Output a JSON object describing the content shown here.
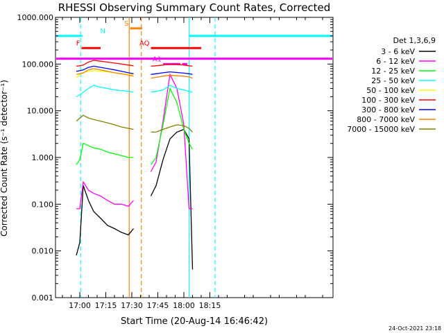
{
  "chart_data": {
    "type": "line",
    "title": "RHESSI Observing Summary Count Rates, Corrected",
    "xlabel": "Start Time (20-Aug-14 16:46:42)",
    "ylabel": "Corrected Count Rate (s⁻¹ detector⁻¹)",
    "y_scale": "log",
    "ylim": [
      0.001,
      1000
    ],
    "xlim": [
      -14,
      146
    ],
    "x_tick_labels": [
      "17:00",
      "17:15",
      "17:30",
      "17:45",
      "18:00",
      "18:15"
    ],
    "x_tick_values": [
      0,
      15,
      30,
      45,
      60,
      75
    ],
    "y_tick_labels": [
      "1000.000",
      "100.000",
      "10.000",
      "1.000",
      "0.100",
      "0.010",
      "0.001"
    ],
    "y_tick_values": [
      1000,
      100,
      10,
      1,
      0.1,
      0.01,
      0.001
    ],
    "legend_title": "Det 1,3,6,9",
    "legend_placement": "right",
    "footer": "24-Oct-2021 23:18",
    "series": [
      {
        "name": "3 - 6 keV",
        "color": "#000000",
        "x": [
          -2,
          0,
          2,
          5,
          8,
          12,
          16,
          20,
          24,
          28,
          31,
          41,
          44,
          48,
          52,
          56,
          60,
          63,
          65
        ],
        "y": [
          0.008,
          0.015,
          0.25,
          0.12,
          0.07,
          0.05,
          0.035,
          0.03,
          0.025,
          0.022,
          0.03,
          0.15,
          0.25,
          0.9,
          2.5,
          3.5,
          4,
          2.5,
          0.004
        ]
      },
      {
        "name": "6 - 12 keV",
        "color": "#ff00ff",
        "x": [
          -2,
          0,
          2,
          5,
          8,
          12,
          16,
          20,
          24,
          28,
          31,
          41,
          44,
          48,
          52,
          56,
          60,
          63,
          65
        ],
        "y": [
          0.08,
          0.08,
          0.3,
          0.2,
          0.17,
          0.15,
          0.12,
          0.1,
          0.1,
          0.09,
          0.12,
          0.5,
          0.8,
          6,
          60,
          30,
          5,
          0.08,
          0.08
        ]
      },
      {
        "name": "12 - 25 keV",
        "color": "#00ff00",
        "x": [
          -2,
          0,
          2,
          5,
          8,
          12,
          16,
          20,
          24,
          28,
          31,
          41,
          44,
          48,
          52,
          56,
          60,
          63,
          65
        ],
        "y": [
          0.7,
          0.9,
          2,
          1.8,
          1.6,
          1.5,
          1.3,
          1.2,
          1.1,
          1,
          1,
          0.7,
          1,
          5,
          30,
          15,
          4,
          2,
          1.5
        ]
      },
      {
        "name": "25 - 50 keV",
        "color": "#00ffff",
        "x": [
          -2,
          0,
          2,
          5,
          8,
          12,
          16,
          20,
          24,
          28,
          31,
          41,
          44,
          48,
          52,
          56,
          60,
          63,
          65
        ],
        "y": [
          20,
          22,
          25,
          30,
          35,
          32,
          30,
          28,
          27,
          26,
          25,
          25,
          26,
          28,
          35,
          30,
          28,
          26,
          25
        ]
      },
      {
        "name": "50 - 100 keV",
        "color": "#ffff00",
        "x": [
          -2,
          0,
          2,
          5,
          8,
          12,
          16,
          20,
          24,
          28,
          31
        ],
        "y": [
          50,
          60,
          65,
          70,
          72,
          70,
          68,
          65,
          62,
          60,
          58
        ]
      },
      {
        "name": "100 - 300 keV",
        "color": "#ff0000",
        "x": [
          -2,
          0,
          2,
          5,
          8,
          12,
          16,
          20,
          24,
          28,
          31,
          41,
          44,
          48,
          52,
          56,
          60,
          63,
          65
        ],
        "y": [
          90,
          92,
          95,
          110,
          120,
          115,
          110,
          105,
          100,
          95,
          92,
          90,
          92,
          95,
          100,
          98,
          95,
          92,
          90
        ]
      },
      {
        "name": "300 - 800 keV",
        "color": "#0000ff",
        "x": [
          -2,
          0,
          2,
          5,
          8,
          12,
          16,
          20,
          24,
          28,
          31,
          41,
          44,
          48,
          52,
          56,
          60,
          63,
          65
        ],
        "y": [
          70,
          72,
          75,
          85,
          90,
          85,
          80,
          75,
          70,
          65,
          62,
          60,
          62,
          65,
          68,
          66,
          64,
          62,
          60
        ]
      },
      {
        "name": "800 - 7000 keV",
        "color": "#ff8000",
        "x": [
          -2,
          0,
          2,
          5,
          8,
          12,
          16,
          20,
          24,
          28,
          31,
          41,
          44,
          48,
          52,
          56,
          60,
          63,
          65
        ],
        "y": [
          60,
          62,
          65,
          75,
          80,
          75,
          70,
          65,
          62,
          58,
          55,
          50,
          52,
          55,
          58,
          56,
          55,
          53,
          50
        ]
      },
      {
        "name": "7000 - 15000 keV",
        "color": "#808000",
        "x": [
          -2,
          0,
          2,
          5,
          8,
          12,
          16,
          20,
          24,
          28,
          31,
          41,
          44,
          48,
          52,
          56,
          60,
          63,
          65
        ],
        "y": [
          6,
          7,
          8,
          7,
          6.5,
          6,
          5.5,
          5,
          4.5,
          4.2,
          4,
          3.5,
          3.5,
          4,
          4.5,
          5,
          4.8,
          4.2,
          3.5
        ]
      }
    ],
    "flag_bars": [
      {
        "label": "N",
        "color": "#00ffff",
        "y": 400,
        "segments": [
          [
            -14,
            1.5
          ],
          [
            63,
            146
          ]
        ]
      },
      {
        "label": "F",
        "color": "#ff0000",
        "y": 220,
        "segments": [
          [
            1,
            12
          ]
        ]
      },
      {
        "label": "S",
        "color": "#ff8000",
        "y": 580,
        "segments": [
          [
            29,
            36
          ]
        ]
      },
      {
        "label": "",
        "color": "#ff00ff",
        "y": 130,
        "segments": [
          [
            -14,
            146
          ]
        ]
      },
      {
        "label": "AQ",
        "color": "#ff0000",
        "y": 220,
        "segments": [
          [
            41,
            70
          ]
        ]
      },
      {
        "label": "A1",
        "color": "#ff00ff",
        "y": 100,
        "segments": [
          [
            48,
            58
          ],
          [
            59,
            62
          ]
        ]
      }
    ],
    "vertical_markers": [
      {
        "x": 0.5,
        "color": "#00ffff",
        "style": "dashed"
      },
      {
        "x": 28.5,
        "color": "#ff8000",
        "style": "solid"
      },
      {
        "x": 35.5,
        "color": "#ff8000",
        "style": "dashed"
      },
      {
        "x": 63,
        "color": "#00ffff",
        "style": "solid"
      },
      {
        "x": 78,
        "color": "#00ffff",
        "style": "dashed"
      }
    ]
  }
}
